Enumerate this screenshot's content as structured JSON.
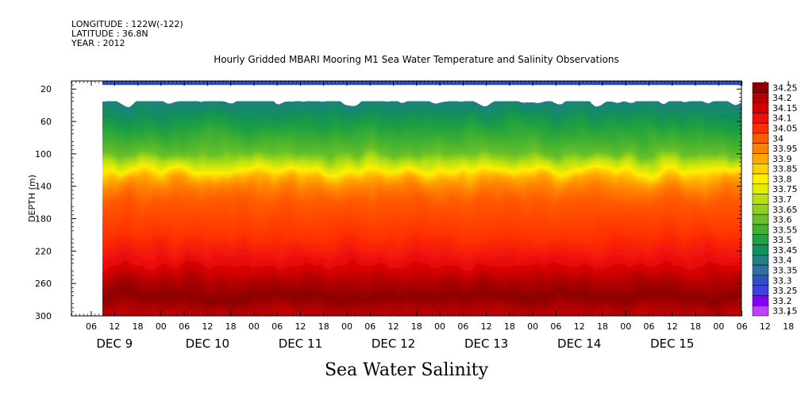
{
  "header": {
    "longitude": "LONGITUDE : 122W(-122)",
    "latitude": "LATITUDE : 36.8N",
    "year": "YEAR : 2012"
  },
  "chart_data": {
    "type": "heatmap",
    "title": "Hourly Gridded MBARI Mooring M1 Sea Water Temperature and Salinity Observations",
    "caption": "Sea Water Salinity",
    "ylabel": "DEPTH (m)",
    "ylim": [
      300,
      10
    ],
    "y_ticks": [
      "20",
      "60",
      "100",
      "140",
      "180",
      "220",
      "260",
      "300"
    ],
    "x_hour_ticks": [
      "06",
      "12",
      "18",
      "00",
      "06",
      "12",
      "18",
      "00",
      "06",
      "12",
      "18",
      "00",
      "06",
      "12",
      "18",
      "00",
      "06",
      "12",
      "18",
      "00",
      "06",
      "12",
      "18",
      "00",
      "06",
      "12",
      "18",
      "00",
      "06",
      "12",
      "18",
      "00"
    ],
    "x_day_labels": [
      "DEC  9",
      "DEC 10",
      "DEC 11",
      "DEC 12",
      "DEC 13",
      "DEC 14",
      "DEC 15"
    ],
    "colorbar_levels": [
      "34.25",
      "34.2",
      "34.15",
      "34.1",
      "34.05",
      "34",
      "33.95",
      "33.9",
      "33.85",
      "33.8",
      "33.75",
      "33.7",
      "33.65",
      "33.6",
      "33.55",
      "33.5",
      "33.45",
      "33.4",
      "33.35",
      "33.3",
      "33.25",
      "33.2",
      "33.15"
    ],
    "colorbar_colors": [
      "#8b0000",
      "#b30000",
      "#d40000",
      "#f01010",
      "#ff3000",
      "#ff5a00",
      "#ff8000",
      "#ffa800",
      "#ffd000",
      "#ffee00",
      "#e0f000",
      "#b8e010",
      "#90d020",
      "#68c028",
      "#40b030",
      "#20a040",
      "#10905a",
      "#208080",
      "#3070a0",
      "#3050c0",
      "#4040e0",
      "#8000ff",
      "#c040ff"
    ],
    "surface_band": {
      "depth_range": [
        10,
        15
      ],
      "value": 33.3
    },
    "profile": [
      {
        "depth": 35,
        "value": 33.4
      },
      {
        "depth": 50,
        "value": 33.45
      },
      {
        "depth": 65,
        "value": 33.5
      },
      {
        "depth": 80,
        "value": 33.55
      },
      {
        "depth": 95,
        "value": 33.6
      },
      {
        "depth": 105,
        "value": 33.7
      },
      {
        "depth": 115,
        "value": 33.8
      },
      {
        "depth": 125,
        "value": 33.9
      },
      {
        "depth": 135,
        "value": 33.95
      },
      {
        "depth": 150,
        "value": 34.0
      },
      {
        "depth": 190,
        "value": 34.05
      },
      {
        "depth": 215,
        "value": 34.1
      },
      {
        "depth": 230,
        "value": 34.15
      },
      {
        "depth": 240,
        "value": 34.2
      },
      {
        "depth": 260,
        "value": 34.25
      },
      {
        "depth": 275,
        "value": 34.2
      },
      {
        "depth": 290,
        "value": 34.15
      },
      {
        "depth": 300,
        "value": 34.1
      }
    ]
  }
}
